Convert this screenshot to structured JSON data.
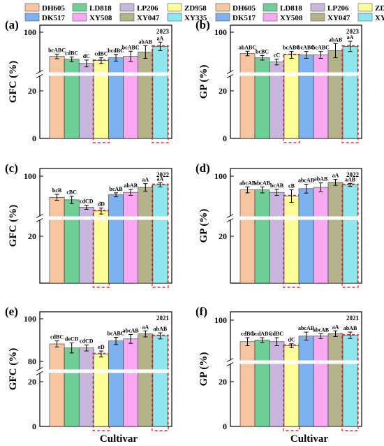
{
  "figure": {
    "footer_xlabel": "Cultivar"
  },
  "legend": {
    "entries": [
      {
        "name": "DH605",
        "color": "#F7C59F"
      },
      {
        "name": "LD818",
        "color": "#6FCF97"
      },
      {
        "name": "LP206",
        "color": "#C9B6DE"
      },
      {
        "name": "ZD958",
        "color": "#FFFF99"
      },
      {
        "name": "DK517",
        "color": "#7EB1F0"
      },
      {
        "name": "XY508",
        "color": "#F9A8F2"
      },
      {
        "name": "XY047",
        "color": "#B5B38A"
      },
      {
        "name": "XY335",
        "color": "#8FE6EE"
      }
    ]
  },
  "highlight": {
    "color": "#E8282B",
    "categories": [
      "ZD958",
      "XY335"
    ]
  },
  "chart_data": [
    {
      "panel": "(a)",
      "type": "bar",
      "year": "2023",
      "ylabel": "GFC (%)",
      "yticks": [
        "0",
        "20",
        "100"
      ],
      "categories": [
        "DH605",
        "LD818",
        "LP206",
        "ZD958",
        "DK517",
        "XY508",
        "XY047",
        "XY335"
      ],
      "values": [
        91.5,
        90.5,
        89.0,
        90.0,
        91.0,
        91.5,
        93.0,
        95.0
      ],
      "errors": [
        0.8,
        0.8,
        1.2,
        1.0,
        1.2,
        1.8,
        2.2,
        1.5
      ],
      "labels": [
        "bcABC",
        "cdBC",
        "dC",
        "cdBC",
        "bcdBC",
        "bcABC",
        "abAB",
        "aA"
      ]
    },
    {
      "panel": "(b)",
      "type": "bar",
      "year": "2023",
      "ylabel": "GP (%)",
      "yticks": [
        "0",
        "20",
        "100"
      ],
      "categories": [
        "DH605",
        "LD818",
        "LP206",
        "ZD958",
        "DK517",
        "XY508",
        "XY047",
        "XY335"
      ],
      "values": [
        92.5,
        91.0,
        89.5,
        92.0,
        92.0,
        92.0,
        93.5,
        95.0
      ],
      "errors": [
        0.8,
        0.8,
        1.0,
        1.2,
        1.2,
        1.2,
        2.5,
        1.8
      ],
      "labels": [
        "abABC",
        "bcBC",
        "cC",
        "bcABC",
        "bcABC",
        "bcABC",
        "abAB",
        "aA"
      ]
    },
    {
      "panel": "(c)",
      "type": "bar",
      "year": "2022",
      "ylabel": "GFC (%)",
      "yticks": [
        "20",
        "100"
      ],
      "categories": [
        "DH605",
        "LD818",
        "LP206",
        "ZD958",
        "DK517",
        "XY508",
        "XY047",
        "XY335"
      ],
      "values": [
        91.5,
        90.5,
        87.5,
        86.0,
        92.5,
        93.5,
        95.5,
        96.5
      ],
      "errors": [
        1.2,
        1.5,
        0.8,
        1.2,
        0.8,
        1.2,
        1.5,
        0.8
      ],
      "labels": [
        "bcB",
        "cBC",
        "cdCD",
        "dD",
        "bcAB",
        "abAB",
        "aA",
        "aA"
      ]
    },
    {
      "panel": "(d)",
      "type": "bar",
      "year": "2022",
      "ylabel": "GP (%)",
      "yticks": [
        "20",
        "100"
      ],
      "categories": [
        "DH605",
        "LD818",
        "LP206",
        "ZD958",
        "DK517",
        "XY508",
        "XY047",
        "XY335"
      ],
      "values": [
        94.5,
        94.5,
        93.5,
        92.0,
        95.0,
        95.5,
        97.5,
        96.5
      ],
      "errors": [
        1.2,
        1.2,
        1.2,
        2.5,
        1.8,
        1.8,
        1.2,
        0.6
      ],
      "labels": [
        "abcAB",
        "abcAB",
        "bcAB",
        "cB",
        "abcAB",
        "abAB",
        "aA",
        "aAB"
      ]
    },
    {
      "panel": "(e)",
      "type": "bar",
      "year": "2021",
      "ylabel": "GFC (%)",
      "yticks": [
        "0",
        "20",
        "80",
        "100"
      ],
      "categories": [
        "DH605",
        "LD818",
        "LP206",
        "ZD958",
        "DK517",
        "XY508",
        "XY047",
        "XY335"
      ],
      "values": [
        87.5,
        85.5,
        85.5,
        82.5,
        89.0,
        90.0,
        92.5,
        91.5
      ],
      "errors": [
        1.5,
        2.5,
        1.5,
        1.5,
        1.8,
        2.2,
        1.5,
        1.5
      ],
      "labels": [
        "cdBC",
        "deCD",
        "cdCD",
        "eD",
        "bcABC",
        "abcAB",
        "aA",
        "abAB"
      ]
    },
    {
      "panel": "(f)",
      "type": "bar",
      "year": "2021",
      "ylabel": "GP (%)",
      "yticks": [
        "0",
        "20",
        "100"
      ],
      "categories": [
        "DH605",
        "LD818",
        "LP206",
        "ZD958",
        "DK517",
        "XY508",
        "XY047",
        "XY335"
      ],
      "values": [
        86.5,
        87.5,
        86.5,
        84.0,
        90.0,
        90.0,
        91.5,
        90.5
      ],
      "errors": [
        2.5,
        1.5,
        2.5,
        1.2,
        2.5,
        1.5,
        1.8,
        2.0
      ],
      "labels": [
        "cdBC",
        "bcdABC",
        "cdBC",
        "dC",
        "abcAB",
        "abcAB",
        "aA",
        "abAB"
      ]
    }
  ]
}
